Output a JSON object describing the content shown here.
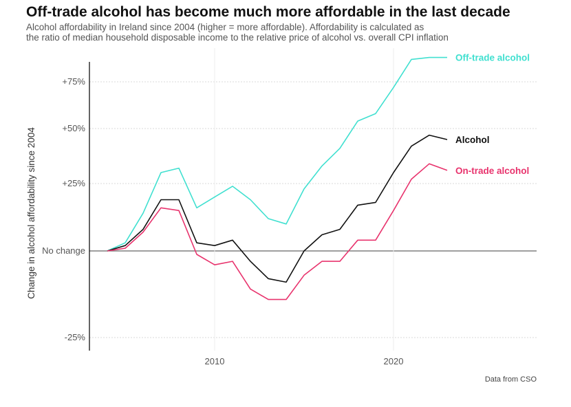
{
  "chart_data": {
    "type": "line",
    "title": "Off-trade alcohol has become much more affordable in the last decade",
    "subtitle": [
      "Alcohol affordability in Ireland since 2004 (higher = more affordable). Affordability is calculated as",
      "the ratio of median household disposable income to the relative price of alcohol vs. overall CPI inflation"
    ],
    "ylabel": "Change in alcohol affordability since 2004",
    "caption": "Data from CSO",
    "x": [
      2004,
      2005,
      2006,
      2007,
      2008,
      2009,
      2010,
      2011,
      2012,
      2013,
      2014,
      2015,
      2016,
      2017,
      2018,
      2019,
      2020,
      2021,
      2022,
      2023
    ],
    "xlim": [
      2003,
      2028
    ],
    "xticks": [
      2010,
      2020
    ],
    "xtick_labels": [
      "2010",
      "2020"
    ],
    "yticks": [
      -25,
      0,
      25,
      50,
      75
    ],
    "ytick_labels": [
      "-25%",
      "No change",
      "+25%",
      "+50%",
      "+75%"
    ],
    "series": [
      {
        "name": "Off-trade alcohol",
        "color": "#40E0D0",
        "values": [
          0,
          3,
          14,
          30,
          32,
          16,
          20,
          24,
          19,
          12,
          10,
          23,
          33,
          41,
          54,
          58,
          72,
          87,
          88,
          88
        ]
      },
      {
        "name": "Alcohol",
        "color": "#111111",
        "values": [
          0,
          2,
          8,
          19,
          19,
          3,
          2,
          4,
          -3,
          -8,
          -9,
          0,
          6,
          8,
          17,
          18,
          30,
          42,
          47,
          45
        ]
      },
      {
        "name": "On-trade alcohol",
        "color": "#E8336D",
        "values": [
          0,
          1,
          7,
          16,
          15,
          -1,
          -4,
          -3,
          -11,
          -14,
          -14,
          -7,
          -3,
          -3,
          4,
          4,
          15,
          27,
          34,
          31
        ]
      }
    ],
    "grid": true,
    "legend": "direct labels at line ends"
  }
}
